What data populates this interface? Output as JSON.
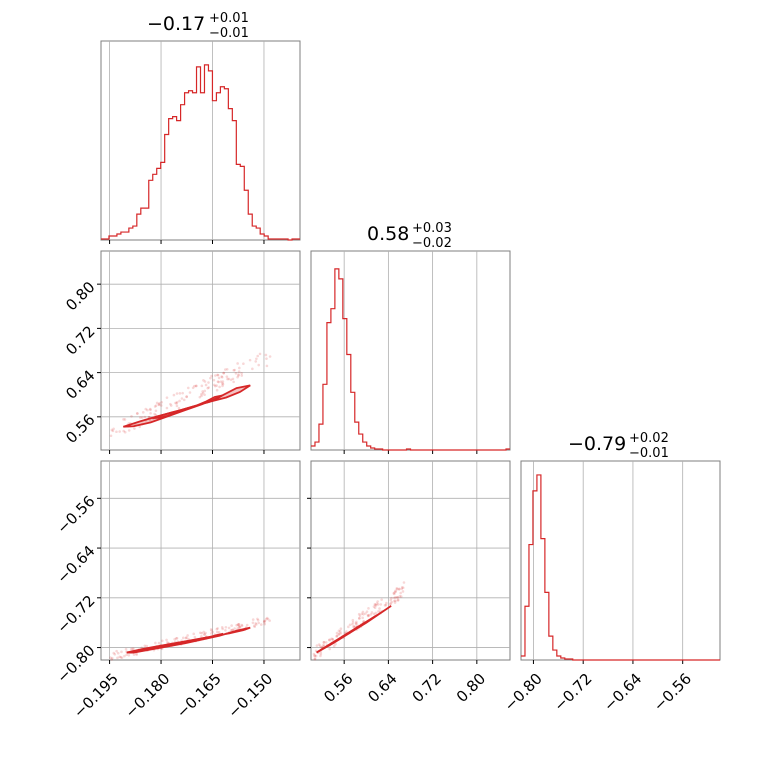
{
  "chart_data": {
    "type": "corner",
    "parameters": [
      {
        "index": 0,
        "title": {
          "median": "−0.17",
          "plus": "+0.01",
          "minus": "−0.01"
        },
        "range": [
          -0.1975,
          -0.1395
        ],
        "ticks": [
          -0.195,
          -0.18,
          -0.165,
          -0.15
        ],
        "tick_labels": [
          "−0.195",
          "−0.180",
          "−0.165",
          "−0.150"
        ]
      },
      {
        "index": 1,
        "title": {
          "median": "0.58",
          "plus": "+0.03",
          "minus": "−0.02"
        },
        "range": [
          0.5,
          0.86
        ],
        "ticks": [
          0.56,
          0.64,
          0.72,
          0.8
        ],
        "tick_labels": [
          "0.56",
          "0.64",
          "0.72",
          "0.80"
        ]
      },
      {
        "index": 2,
        "title": {
          "median": "−0.79",
          "plus": "+0.02",
          "minus": "−0.01"
        },
        "range": [
          -0.82,
          -0.5
        ],
        "ticks": [
          -0.8,
          -0.72,
          -0.64,
          -0.56
        ],
        "tick_labels": [
          "−0.80",
          "−0.72",
          "−0.64",
          "−0.56"
        ]
      }
    ],
    "histograms": [
      {
        "param": 0,
        "bin_edges_start": -0.1975,
        "bin_width": 0.00116,
        "heights": [
          0.005,
          0.005,
          0.02,
          0.02,
          0.03,
          0.04,
          0.04,
          0.06,
          0.07,
          0.13,
          0.16,
          0.16,
          0.3,
          0.33,
          0.36,
          0.39,
          0.53,
          0.61,
          0.62,
          0.6,
          0.68,
          0.74,
          0.75,
          0.74,
          0.87,
          0.74,
          0.88,
          0.85,
          0.7,
          0.74,
          0.77,
          0.76,
          0.66,
          0.6,
          0.38,
          0.37,
          0.25,
          0.13,
          0.07,
          0.06,
          0.03,
          0.02,
          0.005,
          0.005,
          0.005,
          0.005,
          0.005,
          0.0,
          0.005,
          0.005
        ]
      },
      {
        "param": 1,
        "bin_edges_start": 0.5,
        "bin_width": 0.0072,
        "heights": [
          0.02,
          0.04,
          0.13,
          0.33,
          0.64,
          0.71,
          0.91,
          0.86,
          0.66,
          0.48,
          0.29,
          0.14,
          0.08,
          0.04,
          0.02,
          0.01,
          0.005,
          0.005,
          0.0,
          0.0,
          0.0,
          0.0,
          0.0,
          0.0,
          0.005,
          0.0,
          0.0,
          0.0,
          0.0,
          0.0,
          0.0,
          0.0,
          0.0,
          0.0,
          0.0,
          0.0,
          0.0,
          0.0,
          0.0,
          0.0,
          0.0,
          0.0,
          0.0,
          0.0,
          0.0,
          0.0,
          0.0,
          0.0,
          0.0,
          0.005
        ]
      },
      {
        "param": 2,
        "bin_edges_start": -0.82,
        "bin_width": 0.0064,
        "heights": [
          0.02,
          0.27,
          0.58,
          0.85,
          0.93,
          0.61,
          0.34,
          0.12,
          0.05,
          0.02,
          0.01,
          0.005,
          0.005,
          0.0,
          0.0,
          0.0,
          0.0,
          0.0,
          0.0,
          0.0,
          0.0,
          0.0,
          0.0,
          0.0,
          0.0,
          0.0,
          0.0,
          0.0,
          0.0,
          0.0,
          0.0,
          0.0,
          0.0,
          0.0,
          0.0,
          0.0,
          0.0,
          0.0,
          0.0,
          0.0,
          0.0,
          0.0,
          0.0,
          0.0,
          0.0,
          0.0,
          0.0,
          0.0,
          0.0,
          0.0
        ]
      }
    ],
    "pairs": [
      {
        "x_param": 0,
        "y_param": 1,
        "scatter_extent": {
          "x": [
            -0.195,
            -0.148
          ],
          "y": [
            0.53,
            0.67
          ]
        },
        "contour_points": [
          [
            -0.191,
            0.542
          ],
          [
            -0.186,
            0.552
          ],
          [
            -0.181,
            0.561
          ],
          [
            -0.176,
            0.569
          ],
          [
            -0.171,
            0.578
          ],
          [
            -0.166,
            0.587
          ],
          [
            -0.161,
            0.595
          ],
          [
            -0.157,
            0.605
          ],
          [
            -0.154,
            0.617
          ],
          [
            -0.158,
            0.612
          ],
          [
            -0.163,
            0.596
          ],
          [
            -0.168,
            0.583
          ],
          [
            -0.173,
            0.572
          ],
          [
            -0.178,
            0.561
          ],
          [
            -0.183,
            0.55
          ],
          [
            -0.188,
            0.543
          ]
        ]
      },
      {
        "x_param": 0,
        "y_param": 2,
        "scatter_extent": {
          "x": [
            -0.195,
            -0.148
          ],
          "y": [
            -0.815,
            -0.755
          ]
        },
        "contour_points": [
          [
            -0.19,
            -0.808
          ],
          [
            -0.185,
            -0.802
          ],
          [
            -0.18,
            -0.797
          ],
          [
            -0.175,
            -0.792
          ],
          [
            -0.17,
            -0.787
          ],
          [
            -0.165,
            -0.782
          ],
          [
            -0.16,
            -0.777
          ],
          [
            -0.156,
            -0.772
          ],
          [
            -0.154,
            -0.768
          ],
          [
            -0.158,
            -0.773
          ],
          [
            -0.163,
            -0.781
          ],
          [
            -0.168,
            -0.787
          ],
          [
            -0.173,
            -0.793
          ],
          [
            -0.178,
            -0.798
          ],
          [
            -0.183,
            -0.803
          ],
          [
            -0.188,
            -0.808
          ]
        ]
      },
      {
        "x_param": 1,
        "y_param": 2,
        "scatter_extent": {
          "x": [
            0.505,
            0.67
          ],
          "y": [
            -0.81,
            -0.705
          ]
        },
        "contour_points": [
          [
            0.51,
            -0.808
          ],
          [
            0.53,
            -0.797
          ],
          [
            0.55,
            -0.786
          ],
          [
            0.57,
            -0.775
          ],
          [
            0.59,
            -0.764
          ],
          [
            0.61,
            -0.753
          ],
          [
            0.63,
            -0.742
          ],
          [
            0.645,
            -0.733
          ],
          [
            0.64,
            -0.736
          ],
          [
            0.62,
            -0.748
          ],
          [
            0.6,
            -0.76
          ],
          [
            0.58,
            -0.771
          ],
          [
            0.56,
            -0.782
          ],
          [
            0.54,
            -0.793
          ],
          [
            0.52,
            -0.803
          ]
        ]
      }
    ],
    "color": "#d62728",
    "grid": true
  }
}
